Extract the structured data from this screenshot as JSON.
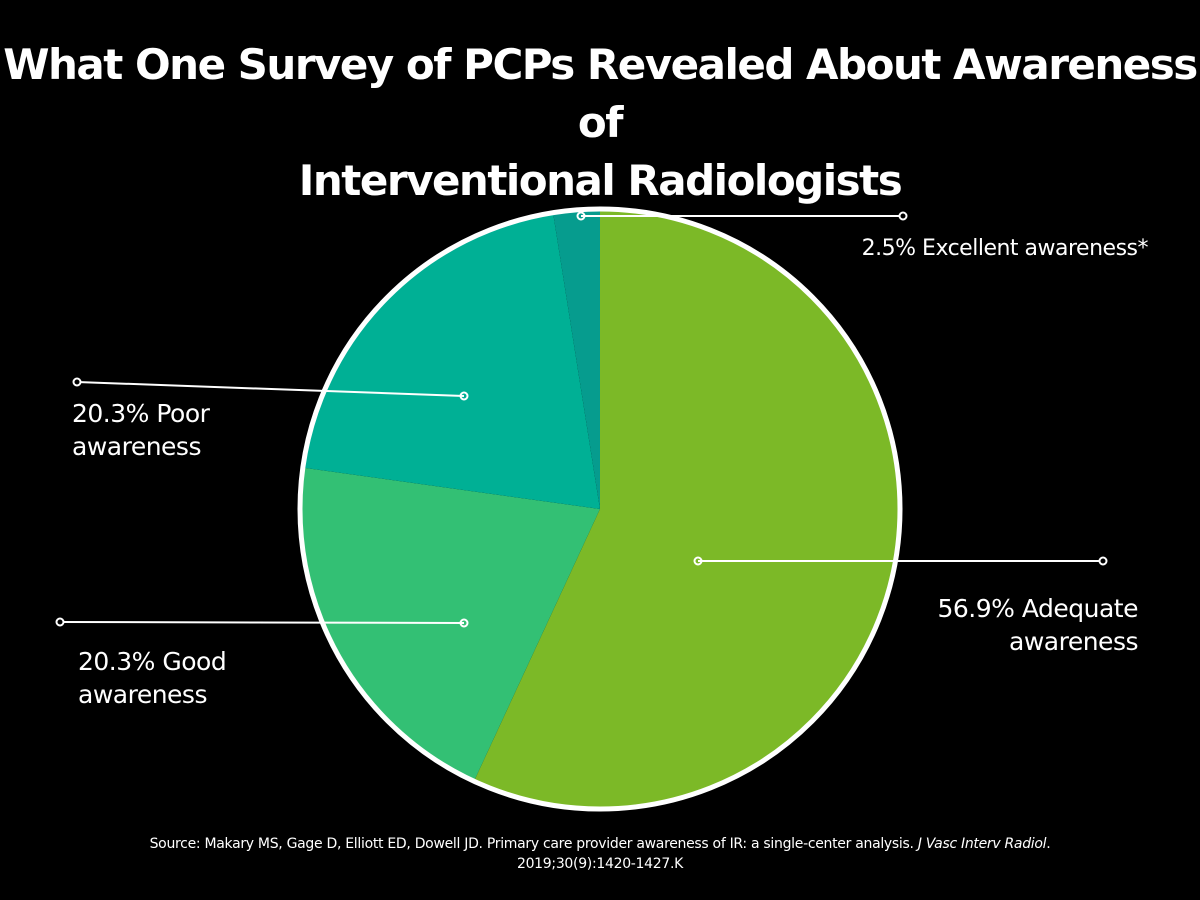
{
  "chart_data": {
    "type": "pie",
    "title_line1": "What One Survey of PCPs Revealed About Awareness of",
    "title_line2": "Interventional Radiologists",
    "colors": {
      "background": "#000000",
      "text": "#ffffff",
      "outline": "#ffffff"
    },
    "slices": [
      {
        "value": 56.9,
        "label_line1": "56.9% Adequate",
        "label_line2": "awareness",
        "color": "#7cb927"
      },
      {
        "value": 20.3,
        "label_line1": "20.3% Good",
        "label_line2": "awareness",
        "color": "#33c074"
      },
      {
        "value": 20.3,
        "label_line1": "20.3% Poor",
        "label_line2": "awareness",
        "color": "#00b095"
      },
      {
        "value": 2.5,
        "label_line1": "2.5% Excellent awareness*",
        "label_line2": "",
        "color": "#069c8e"
      }
    ]
  },
  "source": {
    "prefix": "Source: Makary MS, Gage D, Elliott ED, Dowell JD. Primary care provider awareness of IR: a single-center analysis.",
    "journal": "J Vasc Interv Radiol",
    "line2": "2019;30(9):1420-1427.K"
  }
}
